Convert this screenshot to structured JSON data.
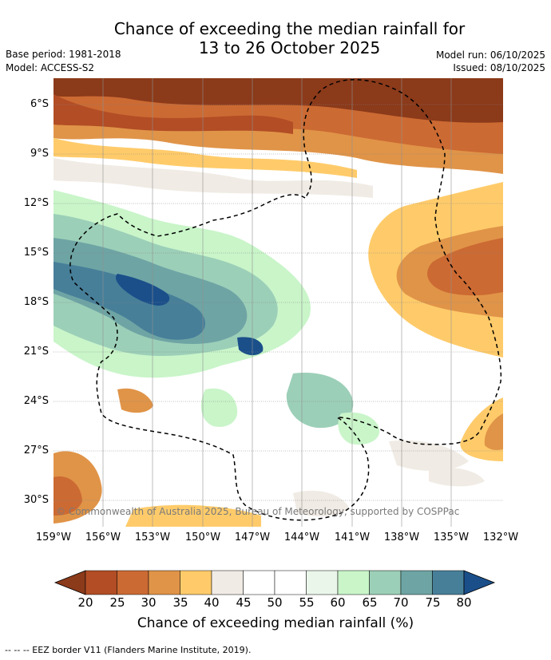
{
  "title_line1": "Chance of exceeding the median rainfall for",
  "title_line2": "13 to 26 October 2025",
  "base_period": "Base period: 1981-2018",
  "model": "Model: ACCESS-S2",
  "model_run": "Model run: 06/10/2025",
  "issued": "Issued: 08/10/2025",
  "copyright": "© Commonwealth of Australia 2025, Bureau of Meteorology, supported by COSPPac",
  "lat_labels": [
    "6°S",
    "9°S",
    "12°S",
    "15°S",
    "18°S",
    "21°S",
    "24°S",
    "27°S",
    "30°S"
  ],
  "lon_labels": [
    "159°W",
    "156°W",
    "153°W",
    "150°W",
    "147°W",
    "144°W",
    "141°W",
    "138°W",
    "135°W",
    "132°W"
  ],
  "colorbar": {
    "ticks": [
      "20",
      "25",
      "30",
      "35",
      "40",
      "45",
      "50",
      "55",
      "60",
      "65",
      "70",
      "75",
      "80"
    ],
    "colors": [
      "#8b3a1a",
      "#b24d25",
      "#cc6a33",
      "#e09448",
      "#ffcb6a",
      "#f0ebe4",
      "#ffffff",
      "#ffffff",
      "#eaf6ea",
      "#c9f5c9",
      "#9ccfb8",
      "#6ea4a4",
      "#477f99",
      "#1a4f8a"
    ],
    "title": "Chance of exceeding median rainfall (%)"
  },
  "footnote": "-- -- -- EEZ border V11 (Flanders Marine Institute, 2019)."
}
